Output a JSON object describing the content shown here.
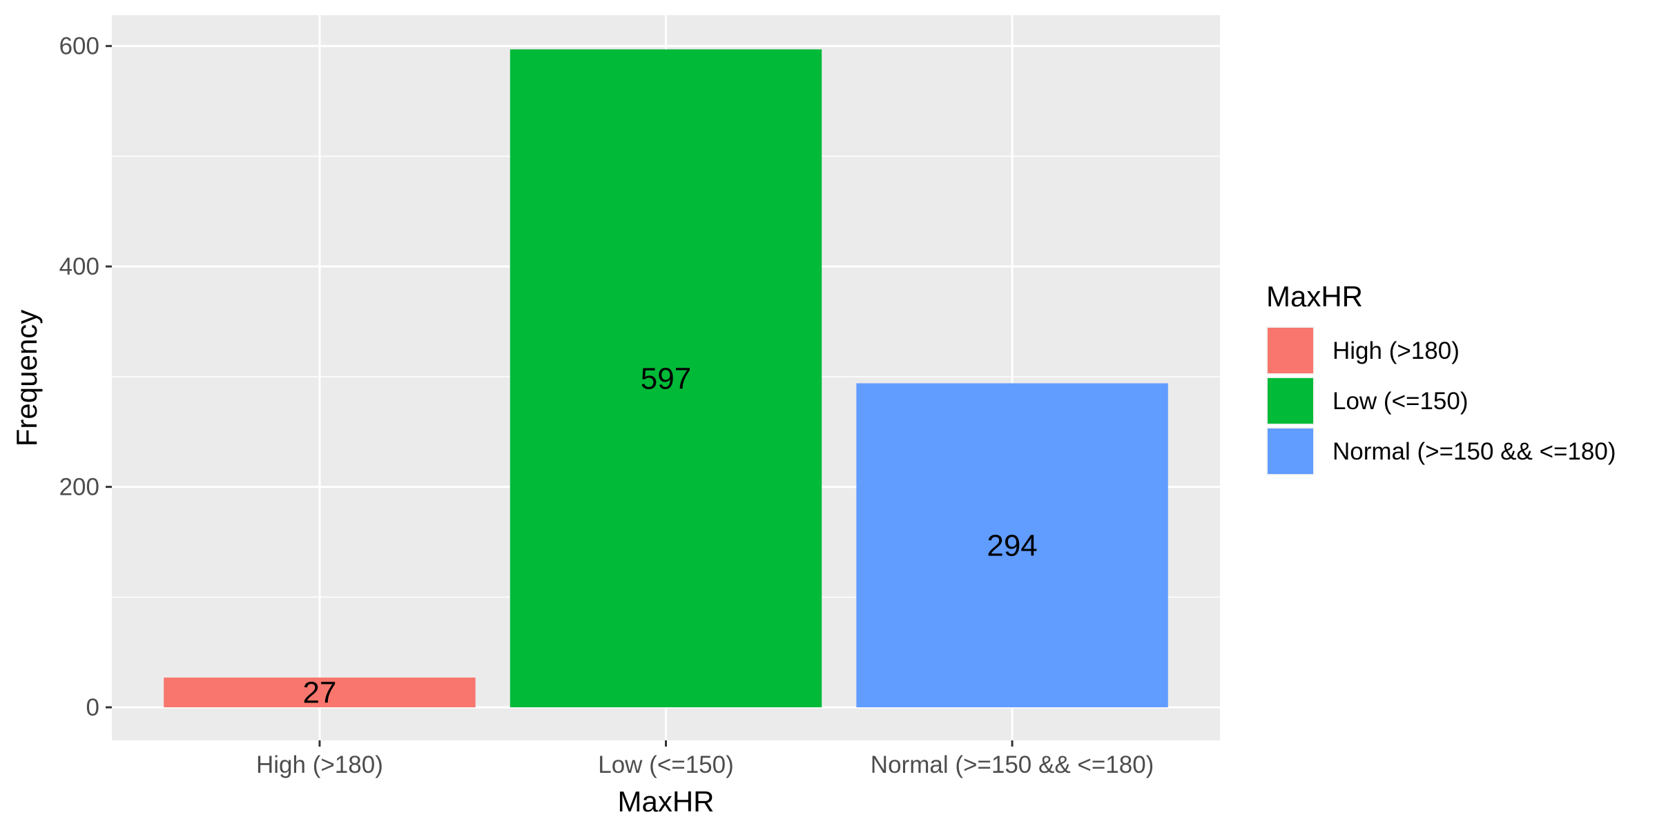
{
  "chart_data": {
    "type": "bar",
    "xlabel": "MaxHR",
    "ylabel": "Frequency",
    "categories": [
      "High (>180)",
      "Low (<=150)",
      "Normal (>=150 && <=180)"
    ],
    "values": [
      27,
      597,
      294
    ],
    "colors": [
      "#F8766D",
      "#00BA38",
      "#619CFF"
    ],
    "ylim": [
      -30,
      628
    ],
    "yticks": [
      0,
      200,
      400,
      600
    ],
    "grid": true,
    "legend": {
      "title": "MaxHR",
      "placement": "right",
      "entries": [
        "High (>180)",
        "Low (<=150)",
        "Normal (>=150 && <=180)"
      ]
    }
  }
}
